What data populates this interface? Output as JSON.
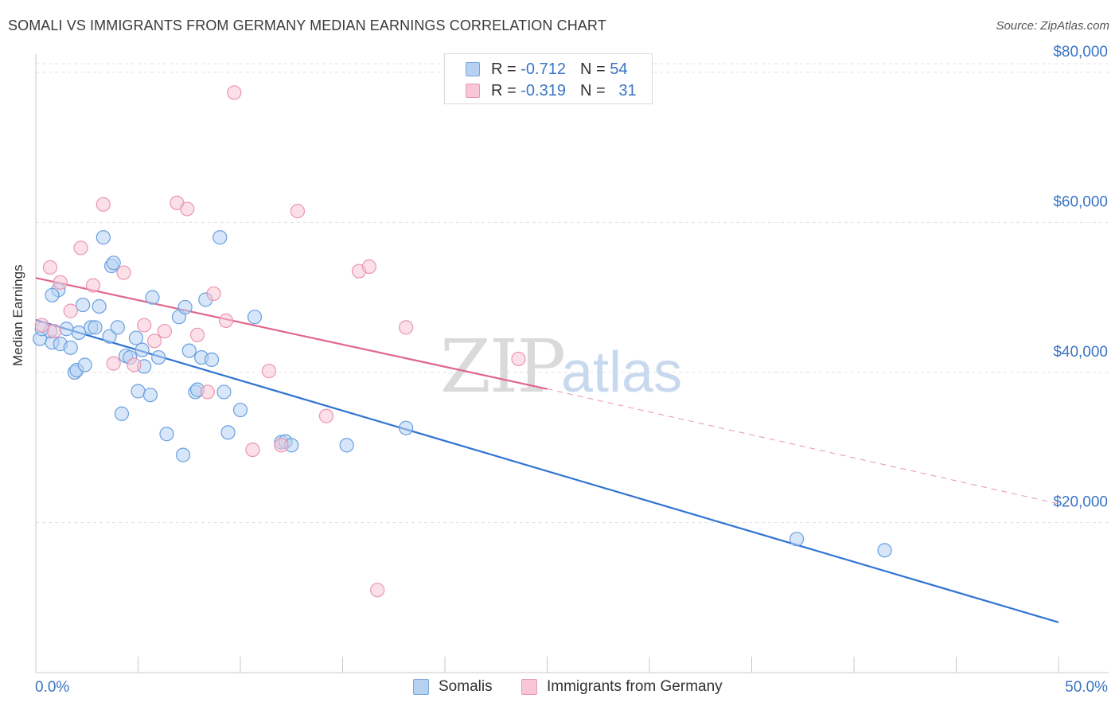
{
  "title": "SOMALI VS IMMIGRANTS FROM GERMANY MEDIAN EARNINGS CORRELATION CHART",
  "source": "Source: ZipAtlas.com",
  "watermark": {
    "zip": "ZIP",
    "atlas": "atlas"
  },
  "legend": {
    "rows": [
      {
        "r_label": "R =",
        "r_value": "-0.712",
        "n_label": "N =",
        "n_value": "54",
        "color": "#b7d1f3"
      },
      {
        "r_label": "R =",
        "r_value": "-0.319",
        "n_label": "N =",
        "n_value": "31",
        "color": "#f8c6d6"
      }
    ]
  },
  "bottom_legend": {
    "series1": "Somalis",
    "series2": "Immigrants from Germany"
  },
  "colors": {
    "blue_fill": "#b7d1f3",
    "blue_stroke": "#6a9fe0",
    "blue_line": "#2f73d3",
    "pink_fill": "#f8c6d6",
    "pink_stroke": "#ea95b2",
    "pink_line": "#e0678d",
    "tick_text": "#3a75c4",
    "grid": "#e1e1e1"
  },
  "chart_data": {
    "type": "scatter",
    "title": "SOMALI VS IMMIGRANTS FROM GERMANY MEDIAN EARNINGS CORRELATION CHART",
    "xlabel": "",
    "ylabel": "Median Earnings",
    "xlim": [
      0,
      50
    ],
    "ylim": [
      0,
      82000
    ],
    "x_tick_labels": [
      "0.0%",
      "50.0%"
    ],
    "y_ticks": [
      20000,
      40000,
      60000,
      80000
    ],
    "y_tick_labels": [
      "$20,000",
      "$40,000",
      "$60,000",
      "$80,000"
    ],
    "grid": true,
    "legend_position": "top-center",
    "series": [
      {
        "name": "Somalis",
        "points": [
          [
            0.2,
            44500
          ],
          [
            0.8,
            44000
          ],
          [
            0.7,
            45500
          ],
          [
            1.1,
            51000
          ],
          [
            0.8,
            50300
          ],
          [
            1.2,
            43800
          ],
          [
            1.5,
            45800
          ],
          [
            1.7,
            43300
          ],
          [
            1.9,
            40000
          ],
          [
            2.0,
            40300
          ],
          [
            2.1,
            45300
          ],
          [
            2.3,
            49000
          ],
          [
            2.4,
            41000
          ],
          [
            2.7,
            46000
          ],
          [
            2.9,
            46000
          ],
          [
            3.1,
            48800
          ],
          [
            3.3,
            58000
          ],
          [
            3.6,
            44800
          ],
          [
            3.7,
            54200
          ],
          [
            3.8,
            54600
          ],
          [
            4.0,
            46000
          ],
          [
            4.2,
            34500
          ],
          [
            4.4,
            42200
          ],
          [
            4.6,
            42000
          ],
          [
            4.9,
            44600
          ],
          [
            5.0,
            37500
          ],
          [
            5.2,
            43000
          ],
          [
            5.3,
            40800
          ],
          [
            5.6,
            37000
          ],
          [
            5.7,
            50000
          ],
          [
            6.0,
            42000
          ],
          [
            6.4,
            31800
          ],
          [
            7.0,
            47400
          ],
          [
            7.2,
            29000
          ],
          [
            7.3,
            48700
          ],
          [
            7.5,
            42900
          ],
          [
            7.8,
            37400
          ],
          [
            7.9,
            37700
          ],
          [
            8.1,
            42000
          ],
          [
            8.3,
            49700
          ],
          [
            8.6,
            41700
          ],
          [
            9.0,
            58000
          ],
          [
            9.2,
            37400
          ],
          [
            9.4,
            32000
          ],
          [
            10.0,
            35000
          ],
          [
            10.7,
            47400
          ],
          [
            12.0,
            30700
          ],
          [
            12.2,
            30800
          ],
          [
            12.5,
            30300
          ],
          [
            15.2,
            30300
          ],
          [
            18.1,
            32600
          ],
          [
            37.2,
            17800
          ],
          [
            41.5,
            16300
          ],
          [
            0.3,
            45800
          ]
        ]
      },
      {
        "name": "Immigrants from Germany",
        "points": [
          [
            0.3,
            46300
          ],
          [
            0.7,
            54000
          ],
          [
            0.9,
            45500
          ],
          [
            1.2,
            52000
          ],
          [
            1.7,
            48200
          ],
          [
            2.2,
            56600
          ],
          [
            2.8,
            51600
          ],
          [
            3.3,
            62400
          ],
          [
            3.8,
            41200
          ],
          [
            4.3,
            53300
          ],
          [
            4.8,
            41000
          ],
          [
            5.3,
            46300
          ],
          [
            5.8,
            44200
          ],
          [
            6.3,
            45500
          ],
          [
            6.9,
            62600
          ],
          [
            7.4,
            61800
          ],
          [
            7.9,
            45000
          ],
          [
            8.4,
            37400
          ],
          [
            8.7,
            50500
          ],
          [
            9.3,
            46900
          ],
          [
            9.7,
            77300
          ],
          [
            10.6,
            29700
          ],
          [
            11.4,
            40200
          ],
          [
            12.0,
            30300
          ],
          [
            12.8,
            61500
          ],
          [
            14.2,
            34200
          ],
          [
            15.8,
            53500
          ],
          [
            16.3,
            54100
          ],
          [
            16.7,
            11000
          ],
          [
            18.1,
            46000
          ],
          [
            23.6,
            41800
          ]
        ]
      }
    ],
    "trend_lines": [
      {
        "series": "Somalis",
        "x0": 0,
        "y0": 47000,
        "x1": 50,
        "y1": 6700,
        "style": "solid"
      },
      {
        "series": "Immigrants from Germany",
        "x0": 0,
        "y0": 52600,
        "x1": 25,
        "y1": 37800,
        "style": "solid"
      },
      {
        "series": "Immigrants from Germany",
        "x0": 25,
        "y0": 37800,
        "x1": 50,
        "y1": 22500,
        "style": "dashed"
      }
    ]
  }
}
